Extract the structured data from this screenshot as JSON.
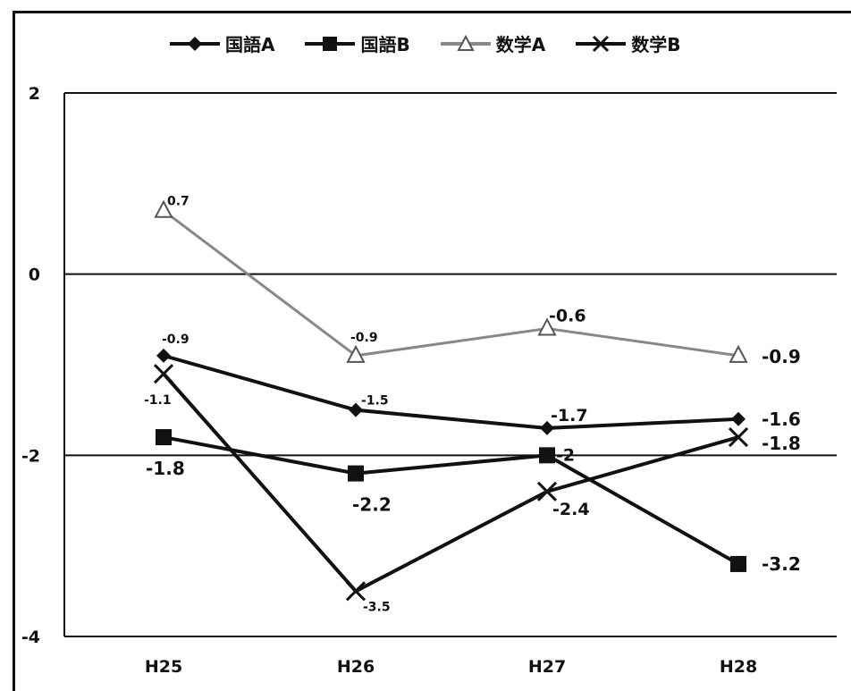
{
  "page": {
    "title": ""
  },
  "chart_data": {
    "type": "line",
    "title": "",
    "xlabel": "",
    "ylabel": "",
    "ylim": [
      -4,
      2
    ],
    "yticks": [
      2,
      0,
      -2,
      -4
    ],
    "categories": [
      "H25",
      "H26",
      "H27",
      "H28"
    ],
    "legend_position": "top",
    "gridlines": [
      0,
      -2
    ],
    "series": [
      {
        "name": "国語A",
        "marker": "diamond",
        "color": "#111111",
        "values": [
          -0.9,
          -1.5,
          -1.7,
          -1.6
        ],
        "labels": [
          "-0.9",
          "-1.5",
          "-1.7",
          "-1.6"
        ]
      },
      {
        "name": "国語B",
        "marker": "square",
        "color": "#111111",
        "values": [
          -1.8,
          -2.2,
          -2,
          -3.2
        ],
        "labels": [
          "-1.8",
          "-2.2",
          "-2",
          "-3.2"
        ]
      },
      {
        "name": "数学A",
        "marker": "triangle",
        "color": "#888888",
        "values": [
          0.7,
          -0.9,
          -0.6,
          -0.9
        ],
        "labels": [
          "0.7",
          "-0.9",
          "-0.6",
          "-0.9"
        ]
      },
      {
        "name": "数学B",
        "marker": "x",
        "color": "#111111",
        "values": [
          -1.1,
          -3.5,
          -2.4,
          -1.8
        ],
        "labels": [
          "-1.1",
          "-3.5",
          "-2.4",
          "-1.8"
        ]
      }
    ]
  }
}
